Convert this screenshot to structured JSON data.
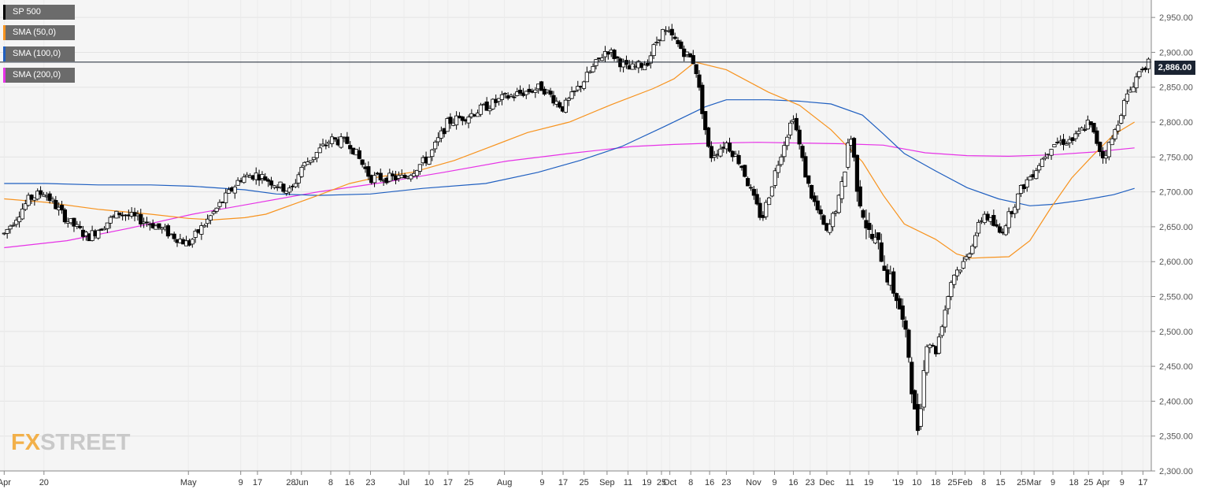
{
  "legend": [
    {
      "label": "SP 500",
      "color": "#000000"
    },
    {
      "label": "SMA (50,0)",
      "color": "#f7931e"
    },
    {
      "label": "SMA (100,0)",
      "color": "#1f5fc0"
    },
    {
      "label": "SMA (200,0)",
      "color": "#e632e6"
    }
  ],
  "logo": {
    "fx": "FX",
    "street": "STREET"
  },
  "current_price": "2,886.00",
  "chart_data": {
    "type": "candlestick",
    "ylim": [
      2300,
      2975
    ],
    "yticks": [
      "2,300.00",
      "2,350.00",
      "2,400.00",
      "2,450.00",
      "2,500.00",
      "2,550.00",
      "2,600.00",
      "2,650.00",
      "2,700.00",
      "2,750.00",
      "2,800.00",
      "2,850.00",
      "2,900.00",
      "2,950.00"
    ],
    "ytick_values": [
      2300,
      2350,
      2400,
      2450,
      2500,
      2550,
      2600,
      2650,
      2700,
      2750,
      2800,
      2850,
      2900,
      2950
    ],
    "xticks": [
      "Apr",
      "20",
      "May",
      "9",
      "17",
      "28",
      "Jun",
      "8",
      "16",
      "23",
      "Jul",
      "10",
      "17",
      "25",
      "Aug",
      "9",
      "17",
      "25",
      "Sep",
      "11",
      "19",
      "25",
      "Oct",
      "8",
      "16",
      "23",
      "Nov",
      "9",
      "16",
      "23",
      "Dec",
      "11",
      "19",
      "'19",
      "10",
      "18",
      "25",
      "Feb",
      "8",
      "15",
      "25",
      "Mar",
      "9",
      "18",
      "25",
      "Apr",
      "9",
      "17"
    ],
    "xtick_days": [
      0,
      19,
      88,
      113,
      121,
      137,
      142,
      156,
      165,
      175,
      191,
      203,
      212,
      222,
      239,
      257,
      267,
      277,
      288,
      298,
      307,
      314,
      318,
      328,
      337,
      345,
      358,
      368,
      377,
      385,
      393,
      404,
      413,
      427,
      436,
      445,
      453,
      459,
      468,
      476,
      486,
      492,
      501,
      511,
      518,
      525,
      534,
      544
    ],
    "current_price": 2886,
    "ohlc": [],
    "sma50": [
      [
        0,
        2690
      ],
      [
        20,
        2685
      ],
      [
        45,
        2675
      ],
      [
        70,
        2668
      ],
      [
        88,
        2662
      ],
      [
        100,
        2660
      ],
      [
        115,
        2663
      ],
      [
        125,
        2668
      ],
      [
        150,
        2695
      ],
      [
        165,
        2712
      ],
      [
        180,
        2722
      ],
      [
        195,
        2728
      ],
      [
        215,
        2745
      ],
      [
        230,
        2762
      ],
      [
        250,
        2785
      ],
      [
        270,
        2800
      ],
      [
        290,
        2825
      ],
      [
        310,
        2848
      ],
      [
        320,
        2862
      ],
      [
        330,
        2886
      ],
      [
        345,
        2875
      ],
      [
        365,
        2843
      ],
      [
        380,
        2824
      ],
      [
        395,
        2789
      ],
      [
        410,
        2743
      ],
      [
        420,
        2695
      ],
      [
        430,
        2654
      ],
      [
        445,
        2632
      ],
      [
        455,
        2611
      ],
      [
        462,
        2605
      ],
      [
        470,
        2606
      ],
      [
        480,
        2607
      ],
      [
        490,
        2630
      ],
      [
        500,
        2677
      ],
      [
        510,
        2720
      ],
      [
        520,
        2752
      ],
      [
        530,
        2782
      ],
      [
        540,
        2800
      ]
    ],
    "sma100": [
      [
        0,
        2712
      ],
      [
        20,
        2712
      ],
      [
        45,
        2710
      ],
      [
        70,
        2710
      ],
      [
        90,
        2708
      ],
      [
        115,
        2703
      ],
      [
        130,
        2697
      ],
      [
        150,
        2695
      ],
      [
        175,
        2697
      ],
      [
        200,
        2705
      ],
      [
        230,
        2712
      ],
      [
        255,
        2728
      ],
      [
        275,
        2745
      ],
      [
        295,
        2765
      ],
      [
        315,
        2793
      ],
      [
        335,
        2822
      ],
      [
        345,
        2832
      ],
      [
        365,
        2832
      ],
      [
        380,
        2830
      ],
      [
        395,
        2826
      ],
      [
        410,
        2810
      ],
      [
        420,
        2783
      ],
      [
        430,
        2755
      ],
      [
        445,
        2730
      ],
      [
        460,
        2706
      ],
      [
        475,
        2690
      ],
      [
        490,
        2680
      ],
      [
        500,
        2682
      ],
      [
        515,
        2688
      ],
      [
        530,
        2696
      ],
      [
        540,
        2705
      ]
    ],
    "sma200": [
      [
        0,
        2620
      ],
      [
        30,
        2630
      ],
      [
        60,
        2648
      ],
      [
        90,
        2668
      ],
      [
        120,
        2684
      ],
      [
        150,
        2700
      ],
      [
        180,
        2713
      ],
      [
        210,
        2728
      ],
      [
        240,
        2744
      ],
      [
        270,
        2755
      ],
      [
        300,
        2765
      ],
      [
        320,
        2768
      ],
      [
        340,
        2770
      ],
      [
        360,
        2771
      ],
      [
        380,
        2770
      ],
      [
        400,
        2769
      ],
      [
        420,
        2767
      ],
      [
        440,
        2756
      ],
      [
        460,
        2752
      ],
      [
        480,
        2751
      ],
      [
        500,
        2753
      ],
      [
        520,
        2757
      ],
      [
        540,
        2763
      ]
    ]
  }
}
